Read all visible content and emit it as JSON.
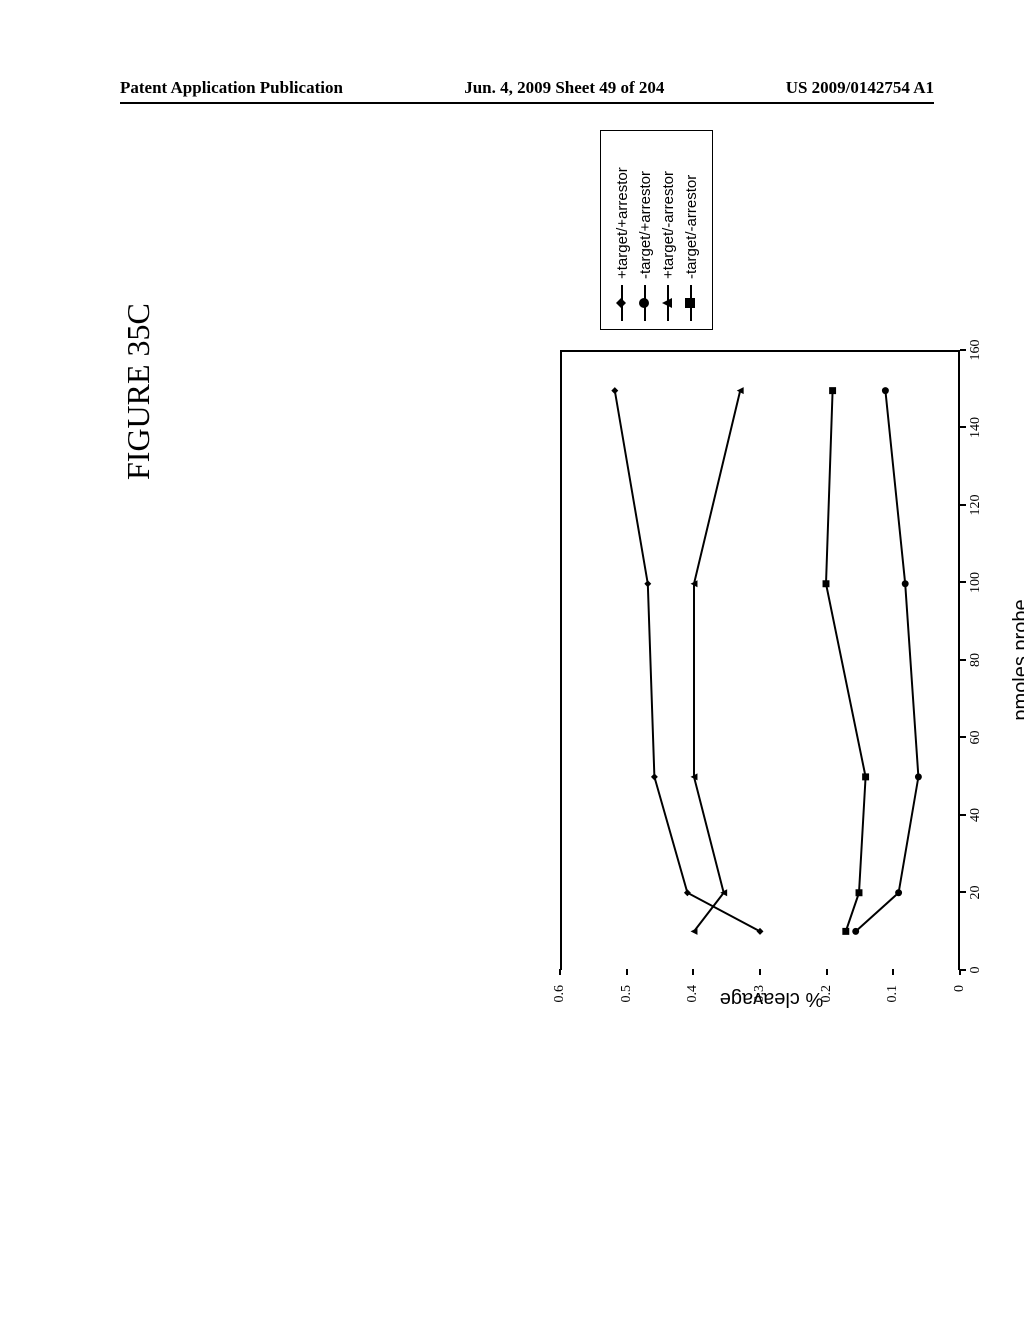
{
  "header": {
    "left": "Patent Application Publication",
    "center": "Jun. 4, 2009  Sheet 49 of 204",
    "right": "US 2009/0142754 A1"
  },
  "figure_label": "FIGURE 35C",
  "chart": {
    "type": "line",
    "x_label": "pmoles probe",
    "y_label": "% cleavage",
    "xlim": [
      0,
      160
    ],
    "ylim": [
      0,
      0.6
    ],
    "xtick_step": 20,
    "ytick_step": 0.1,
    "plot_bg": "#ffffff",
    "axis_color": "#000000",
    "line_width": 2,
    "marker_size": 7,
    "title_fontsize": 20,
    "tick_fontsize": 14,
    "series": [
      {
        "name": "+target/+arrestor",
        "marker": "diamond",
        "color": "#000000",
        "points": [
          {
            "x": 10,
            "y": 0.3
          },
          {
            "x": 20,
            "y": 0.41
          },
          {
            "x": 50,
            "y": 0.46
          },
          {
            "x": 100,
            "y": 0.47
          },
          {
            "x": 150,
            "y": 0.52
          }
        ]
      },
      {
        "name": "-target/+arrestor",
        "marker": "circle",
        "color": "#000000",
        "points": [
          {
            "x": 10,
            "y": 0.155
          },
          {
            "x": 20,
            "y": 0.09
          },
          {
            "x": 50,
            "y": 0.06
          },
          {
            "x": 100,
            "y": 0.08
          },
          {
            "x": 150,
            "y": 0.11
          }
        ]
      },
      {
        "name": "+target/-arrestor",
        "marker": "triangle",
        "color": "#000000",
        "points": [
          {
            "x": 10,
            "y": 0.4
          },
          {
            "x": 20,
            "y": 0.355
          },
          {
            "x": 50,
            "y": 0.4
          },
          {
            "x": 100,
            "y": 0.4
          },
          {
            "x": 150,
            "y": 0.33
          }
        ]
      },
      {
        "name": "-target/-arrestor",
        "marker": "square",
        "color": "#000000",
        "points": [
          {
            "x": 10,
            "y": 0.17
          },
          {
            "x": 20,
            "y": 0.15
          },
          {
            "x": 50,
            "y": 0.14
          },
          {
            "x": 100,
            "y": 0.2
          },
          {
            "x": 150,
            "y": 0.19
          }
        ]
      }
    ]
  }
}
